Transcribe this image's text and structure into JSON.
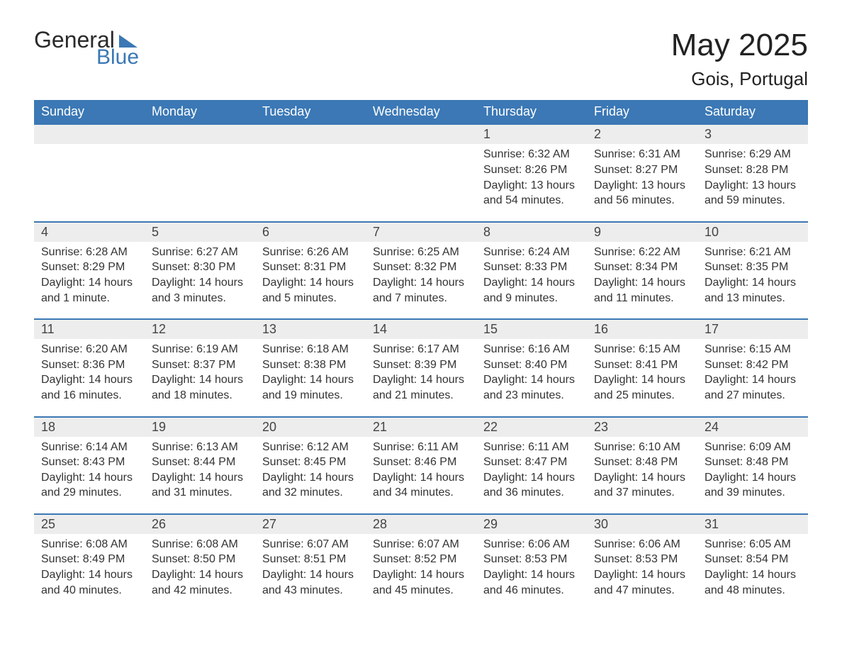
{
  "logo": {
    "text1": "General",
    "text2": "Blue"
  },
  "title": "May 2025",
  "location": "Gois, Portugal",
  "colors": {
    "header_bg": "#3b78b5",
    "header_text": "#ffffff",
    "daynum_bg": "#ededed",
    "border": "#3b78b5",
    "body_bg": "#ffffff",
    "text": "#333333"
  },
  "columns": [
    "Sunday",
    "Monday",
    "Tuesday",
    "Wednesday",
    "Thursday",
    "Friday",
    "Saturday"
  ],
  "weeks": [
    [
      null,
      null,
      null,
      null,
      {
        "n": "1",
        "sr": "6:32 AM",
        "ss": "8:26 PM",
        "dl": "13 hours and 54 minutes."
      },
      {
        "n": "2",
        "sr": "6:31 AM",
        "ss": "8:27 PM",
        "dl": "13 hours and 56 minutes."
      },
      {
        "n": "3",
        "sr": "6:29 AM",
        "ss": "8:28 PM",
        "dl": "13 hours and 59 minutes."
      }
    ],
    [
      {
        "n": "4",
        "sr": "6:28 AM",
        "ss": "8:29 PM",
        "dl": "14 hours and 1 minute."
      },
      {
        "n": "5",
        "sr": "6:27 AM",
        "ss": "8:30 PM",
        "dl": "14 hours and 3 minutes."
      },
      {
        "n": "6",
        "sr": "6:26 AM",
        "ss": "8:31 PM",
        "dl": "14 hours and 5 minutes."
      },
      {
        "n": "7",
        "sr": "6:25 AM",
        "ss": "8:32 PM",
        "dl": "14 hours and 7 minutes."
      },
      {
        "n": "8",
        "sr": "6:24 AM",
        "ss": "8:33 PM",
        "dl": "14 hours and 9 minutes."
      },
      {
        "n": "9",
        "sr": "6:22 AM",
        "ss": "8:34 PM",
        "dl": "14 hours and 11 minutes."
      },
      {
        "n": "10",
        "sr": "6:21 AM",
        "ss": "8:35 PM",
        "dl": "14 hours and 13 minutes."
      }
    ],
    [
      {
        "n": "11",
        "sr": "6:20 AM",
        "ss": "8:36 PM",
        "dl": "14 hours and 16 minutes."
      },
      {
        "n": "12",
        "sr": "6:19 AM",
        "ss": "8:37 PM",
        "dl": "14 hours and 18 minutes."
      },
      {
        "n": "13",
        "sr": "6:18 AM",
        "ss": "8:38 PM",
        "dl": "14 hours and 19 minutes."
      },
      {
        "n": "14",
        "sr": "6:17 AM",
        "ss": "8:39 PM",
        "dl": "14 hours and 21 minutes."
      },
      {
        "n": "15",
        "sr": "6:16 AM",
        "ss": "8:40 PM",
        "dl": "14 hours and 23 minutes."
      },
      {
        "n": "16",
        "sr": "6:15 AM",
        "ss": "8:41 PM",
        "dl": "14 hours and 25 minutes."
      },
      {
        "n": "17",
        "sr": "6:15 AM",
        "ss": "8:42 PM",
        "dl": "14 hours and 27 minutes."
      }
    ],
    [
      {
        "n": "18",
        "sr": "6:14 AM",
        "ss": "8:43 PM",
        "dl": "14 hours and 29 minutes."
      },
      {
        "n": "19",
        "sr": "6:13 AM",
        "ss": "8:44 PM",
        "dl": "14 hours and 31 minutes."
      },
      {
        "n": "20",
        "sr": "6:12 AM",
        "ss": "8:45 PM",
        "dl": "14 hours and 32 minutes."
      },
      {
        "n": "21",
        "sr": "6:11 AM",
        "ss": "8:46 PM",
        "dl": "14 hours and 34 minutes."
      },
      {
        "n": "22",
        "sr": "6:11 AM",
        "ss": "8:47 PM",
        "dl": "14 hours and 36 minutes."
      },
      {
        "n": "23",
        "sr": "6:10 AM",
        "ss": "8:48 PM",
        "dl": "14 hours and 37 minutes."
      },
      {
        "n": "24",
        "sr": "6:09 AM",
        "ss": "8:48 PM",
        "dl": "14 hours and 39 minutes."
      }
    ],
    [
      {
        "n": "25",
        "sr": "6:08 AM",
        "ss": "8:49 PM",
        "dl": "14 hours and 40 minutes."
      },
      {
        "n": "26",
        "sr": "6:08 AM",
        "ss": "8:50 PM",
        "dl": "14 hours and 42 minutes."
      },
      {
        "n": "27",
        "sr": "6:07 AM",
        "ss": "8:51 PM",
        "dl": "14 hours and 43 minutes."
      },
      {
        "n": "28",
        "sr": "6:07 AM",
        "ss": "8:52 PM",
        "dl": "14 hours and 45 minutes."
      },
      {
        "n": "29",
        "sr": "6:06 AM",
        "ss": "8:53 PM",
        "dl": "14 hours and 46 minutes."
      },
      {
        "n": "30",
        "sr": "6:06 AM",
        "ss": "8:53 PM",
        "dl": "14 hours and 47 minutes."
      },
      {
        "n": "31",
        "sr": "6:05 AM",
        "ss": "8:54 PM",
        "dl": "14 hours and 48 minutes."
      }
    ]
  ],
  "labels": {
    "sunrise": "Sunrise: ",
    "sunset": "Sunset: ",
    "daylight": "Daylight: "
  }
}
